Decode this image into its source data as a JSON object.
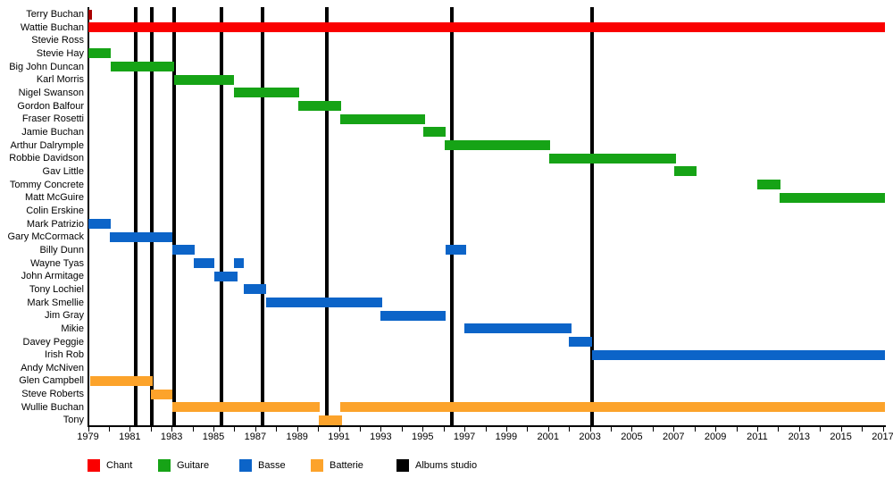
{
  "chart_data": {
    "type": "timeline",
    "title": "",
    "x_axis": {
      "start": 1979,
      "end": 2017,
      "minor_tick_step": 1,
      "label_step": 2,
      "tick_labels": [
        "1979",
        "1981",
        "1983",
        "1985",
        "1987",
        "1989",
        "1991",
        "1993",
        "1995",
        "1997",
        "1999",
        "2001",
        "2003",
        "2005",
        "2007",
        "2009",
        "2011",
        "2013",
        "2015",
        "2017"
      ]
    },
    "roles": {
      "chant": "#fa0000",
      "guitare": "#16a316",
      "basse": "#0c64c8",
      "batterie": "#fca32b",
      "albums": "#000000"
    },
    "legend": [
      {
        "key": "chant",
        "label": "Chant",
        "color": "#fa0000"
      },
      {
        "key": "guitare",
        "label": "Guitare",
        "color": "#16a316"
      },
      {
        "key": "basse",
        "label": "Basse",
        "color": "#0c64c8"
      },
      {
        "key": "batterie",
        "label": "Batterie",
        "color": "#fca32b"
      },
      {
        "key": "albums",
        "label": "Albums studio",
        "color": "#000000"
      }
    ],
    "members": [
      {
        "name": "Terry Buchan",
        "role": "chant",
        "color": "#aa0000",
        "stints": [
          [
            1979.0,
            1979.2
          ]
        ]
      },
      {
        "name": "Wattie Buchan",
        "role": "chant",
        "stints": [
          [
            1979.0,
            2017.1
          ]
        ]
      },
      {
        "name": "Stevie Ross",
        "role": "guitare",
        "stints": []
      },
      {
        "name": "Stevie Hay",
        "role": "guitare",
        "stints": [
          [
            1979.0,
            1980.1
          ]
        ]
      },
      {
        "name": "Big John Duncan",
        "role": "guitare",
        "stints": [
          [
            1980.1,
            1983.1
          ]
        ]
      },
      {
        "name": "Karl Morris",
        "role": "guitare",
        "stints": [
          [
            1983.1,
            1986.0
          ]
        ]
      },
      {
        "name": "Nigel Swanson",
        "role": "guitare",
        "stints": [
          [
            1986.0,
            1989.1
          ]
        ]
      },
      {
        "name": "Gordon Balfour",
        "role": "guitare",
        "stints": [
          [
            1989.05,
            1991.1
          ]
        ]
      },
      {
        "name": "Fraser Rosetti",
        "role": "guitare",
        "stints": [
          [
            1991.05,
            1995.1
          ]
        ]
      },
      {
        "name": "Jamie Buchan",
        "role": "guitare",
        "stints": [
          [
            1995.05,
            1996.1
          ]
        ]
      },
      {
        "name": "Arthur Dalrymple",
        "role": "guitare",
        "stints": [
          [
            1996.05,
            2001.1
          ]
        ]
      },
      {
        "name": "Robbie Davidson",
        "role": "guitare",
        "stints": [
          [
            2001.05,
            2007.1
          ]
        ]
      },
      {
        "name": "Gav Little",
        "role": "guitare",
        "stints": [
          [
            2007.05,
            2008.1
          ]
        ]
      },
      {
        "name": "Tommy Concrete",
        "role": "guitare",
        "stints": [
          [
            2011.0,
            2012.1
          ]
        ]
      },
      {
        "name": "Matt McGuire",
        "role": "guitare",
        "stints": [
          [
            2012.05,
            2017.1
          ]
        ]
      },
      {
        "name": "Colin Erskine",
        "role": "guitare",
        "stints": []
      },
      {
        "name": "Mark Patrizio",
        "role": "basse",
        "stints": [
          [
            1979.0,
            1980.1
          ]
        ]
      },
      {
        "name": "Gary McCormack",
        "role": "basse",
        "stints": [
          [
            1980.05,
            1983.05
          ]
        ]
      },
      {
        "name": "Billy Dunn",
        "role": "basse",
        "stints": [
          [
            1983.05,
            1984.1
          ],
          [
            1996.1,
            1997.1
          ]
        ]
      },
      {
        "name": "Wayne Tyas",
        "role": "basse",
        "stints": [
          [
            1984.05,
            1985.05
          ],
          [
            1986.0,
            1986.45
          ]
        ]
      },
      {
        "name": "John Armitage",
        "role": "basse",
        "stints": [
          [
            1985.05,
            1986.15
          ]
        ]
      },
      {
        "name": "Tony Lochiel",
        "role": "basse",
        "stints": [
          [
            1986.45,
            1987.5
          ]
        ]
      },
      {
        "name": "Mark Smellie",
        "role": "basse",
        "stints": [
          [
            1987.5,
            1993.05
          ]
        ]
      },
      {
        "name": "Jim Gray",
        "role": "basse",
        "stints": [
          [
            1993.0,
            1996.1
          ]
        ]
      },
      {
        "name": "Mikie",
        "role": "basse",
        "stints": [
          [
            1997.0,
            2002.1
          ]
        ]
      },
      {
        "name": "Davey Peggie",
        "role": "basse",
        "stints": [
          [
            2002.0,
            2003.1
          ]
        ]
      },
      {
        "name": "Irish Rob",
        "role": "basse",
        "stints": [
          [
            2003.1,
            2017.1
          ]
        ]
      },
      {
        "name": "Andy McNiven",
        "role": "batterie",
        "stints": []
      },
      {
        "name": "Glen Campbell",
        "role": "batterie",
        "stints": [
          [
            1979.1,
            1982.1
          ]
        ]
      },
      {
        "name": "Steve Roberts",
        "role": "batterie",
        "stints": [
          [
            1982.0,
            1983.05
          ]
        ]
      },
      {
        "name": "Wullie Buchan",
        "role": "batterie",
        "stints": [
          [
            1983.05,
            1990.1
          ],
          [
            1991.05,
            2017.1
          ]
        ]
      },
      {
        "name": "Tony",
        "role": "batterie",
        "stints": [
          [
            1990.05,
            1991.15
          ]
        ]
      }
    ],
    "albums_studio_years": [
      1981.3,
      1982.07,
      1983.1,
      1985.4,
      1987.33,
      1990.4,
      1996.4,
      2003.1
    ],
    "legend_position": "bottom",
    "grid": false
  }
}
